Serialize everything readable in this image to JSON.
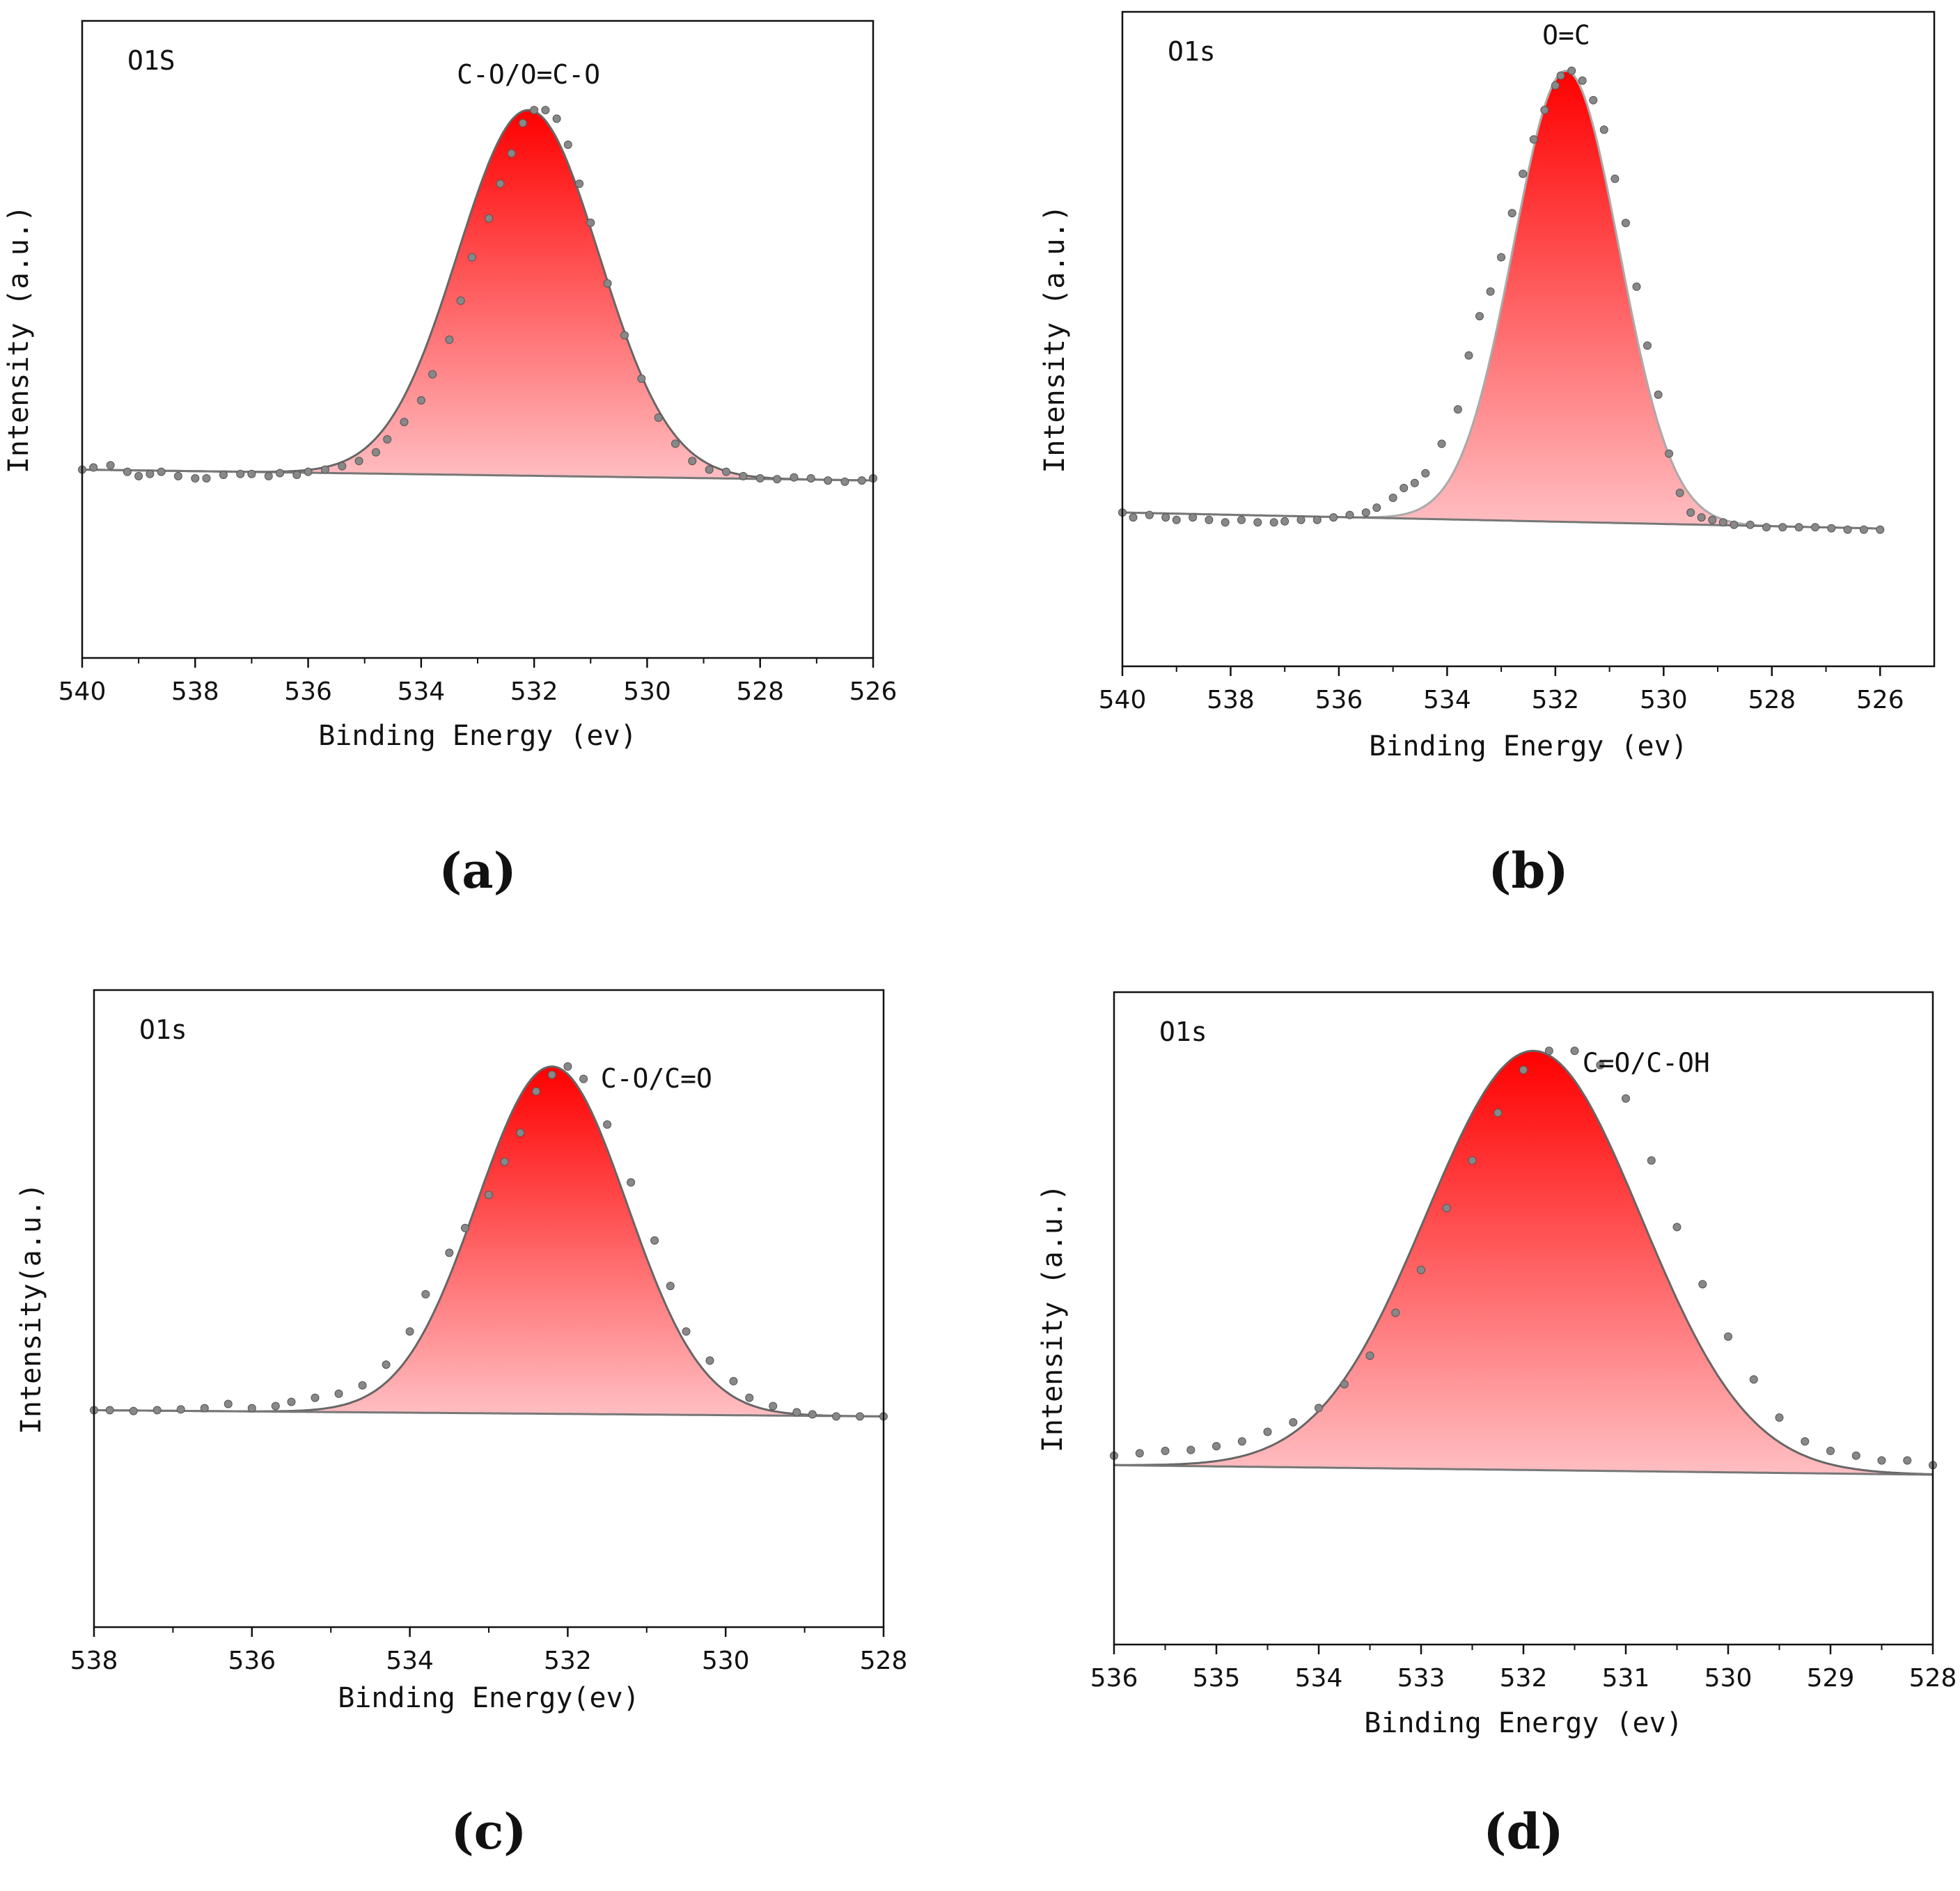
{
  "chart_data": [
    {
      "type": "area",
      "panel_label": "(a)",
      "spectrum_label": "O1S",
      "peak_annotation": "C-O/O=C-O",
      "xlabel": "Binding Energy (ev)",
      "ylabel": "Intensity (a.u.)",
      "xlim": [
        540,
        526
      ],
      "xticks": [
        540,
        538,
        536,
        534,
        532,
        530,
        528,
        526
      ],
      "x_reversed": true,
      "ylim": [
        0,
        1
      ],
      "peak": {
        "center": 532.1,
        "height": 1.0,
        "sigma": 1.25
      },
      "background": {
        "start": 0.17,
        "end": 0.145
      },
      "fill_gradient": [
        "#ff0000",
        "#ffbfc3"
      ],
      "fit_color": "#666666",
      "marker_color": "#888888",
      "points": {
        "x": [
          540,
          539.8,
          539.5,
          539.2,
          539.0,
          538.8,
          538.6,
          538.3,
          538.0,
          537.8,
          537.5,
          537.2,
          537.0,
          536.7,
          536.5,
          536.2,
          536.0,
          535.7,
          535.4,
          535.1,
          534.8,
          534.6,
          534.3,
          534.0,
          533.8,
          533.5,
          533.3,
          533.1,
          532.8,
          532.6,
          532.4,
          532.2,
          532.0,
          531.8,
          531.6,
          531.4,
          531.2,
          531.0,
          530.7,
          530.4,
          530.1,
          529.8,
          529.5,
          529.2,
          528.9,
          528.6,
          528.3,
          528.0,
          527.7,
          527.4,
          527.1,
          526.8,
          526.5,
          526.2,
          526.0
        ],
        "y": [
          0.17,
          0.175,
          0.18,
          0.165,
          0.155,
          0.16,
          0.165,
          0.155,
          0.15,
          0.15,
          0.158,
          0.16,
          0.16,
          0.155,
          0.162,
          0.158,
          0.165,
          0.17,
          0.178,
          0.19,
          0.21,
          0.24,
          0.28,
          0.33,
          0.39,
          0.47,
          0.56,
          0.66,
          0.75,
          0.83,
          0.9,
          0.97,
          1.0,
          1.0,
          0.98,
          0.92,
          0.83,
          0.74,
          0.6,
          0.48,
          0.38,
          0.29,
          0.23,
          0.19,
          0.17,
          0.165,
          0.155,
          0.15,
          0.148,
          0.152,
          0.15,
          0.145,
          0.142,
          0.145,
          0.15
        ]
      }
    },
    {
      "type": "area",
      "panel_label": "(b)",
      "spectrum_label": "O1s",
      "peak_annotation": "O=C",
      "xlabel": "Binding Energy (ev)",
      "ylabel": "Intensity (a.u.)",
      "xlim": [
        540,
        525
      ],
      "xticks": [
        540,
        538,
        536,
        534,
        532,
        530,
        528,
        526
      ],
      "x_reversed": true,
      "ylim": [
        0,
        1
      ],
      "peak": {
        "center": 531.8,
        "height": 1.0,
        "sigma": 0.98
      },
      "background": {
        "start": 0.1,
        "end": 0.065
      },
      "fill_gradient": [
        "#ff0000",
        "#ffbfc3"
      ],
      "fit_color": "#aaaaaa",
      "marker_color": "#888888",
      "points": {
        "x": [
          540,
          539.8,
          539.5,
          539.2,
          539.0,
          538.7,
          538.4,
          538.1,
          537.8,
          537.5,
          537.2,
          537.0,
          536.7,
          536.4,
          536.1,
          535.8,
          535.5,
          535.3,
          535.0,
          534.8,
          534.6,
          534.4,
          534.1,
          533.8,
          533.6,
          533.4,
          533.2,
          533.0,
          532.8,
          532.6,
          532.4,
          532.2,
          532.0,
          531.9,
          531.7,
          531.5,
          531.3,
          531.1,
          530.9,
          530.7,
          530.5,
          530.3,
          530.1,
          529.9,
          529.7,
          529.5,
          529.3,
          529.1,
          528.9,
          528.7,
          528.4,
          528.1,
          527.8,
          527.5,
          527.2,
          526.9,
          526.6,
          526.3,
          526.0
        ],
        "y": [
          0.1,
          0.09,
          0.095,
          0.09,
          0.085,
          0.09,
          0.085,
          0.08,
          0.085,
          0.08,
          0.08,
          0.082,
          0.085,
          0.085,
          0.09,
          0.095,
          0.1,
          0.11,
          0.13,
          0.15,
          0.16,
          0.18,
          0.24,
          0.31,
          0.42,
          0.5,
          0.55,
          0.62,
          0.71,
          0.79,
          0.86,
          0.92,
          0.97,
          0.99,
          1.0,
          0.98,
          0.94,
          0.88,
          0.78,
          0.69,
          0.56,
          0.44,
          0.34,
          0.22,
          0.14,
          0.1,
          0.09,
          0.085,
          0.08,
          0.075,
          0.075,
          0.07,
          0.07,
          0.07,
          0.07,
          0.068,
          0.065,
          0.065,
          0.065
        ]
      }
    },
    {
      "type": "area",
      "panel_label": "(c)",
      "spectrum_label": "O1s",
      "peak_annotation": "C-O/C=O",
      "xlabel": "Binding Energy(ev)",
      "ylabel": "Intensity(a.u.)",
      "xlim": [
        538,
        528
      ],
      "xticks": [
        538,
        536,
        534,
        532,
        530,
        528
      ],
      "x_reversed": true,
      "ylim": [
        0,
        1
      ],
      "peak": {
        "center": 532.2,
        "height": 1.0,
        "sigma": 0.95
      },
      "background": {
        "start": 0.17,
        "end": 0.155
      },
      "fill_gradient": [
        "#ff0000",
        "#ffbfc3"
      ],
      "fit_color": "#666666",
      "marker_color": "#888888",
      "points": {
        "x": [
          538,
          537.8,
          537.5,
          537.2,
          536.9,
          536.6,
          536.3,
          536.0,
          535.7,
          535.5,
          535.2,
          534.9,
          534.6,
          534.3,
          534.0,
          533.8,
          533.5,
          533.3,
          533.0,
          532.8,
          532.6,
          532.4,
          532.2,
          532.0,
          531.8,
          531.5,
          531.2,
          530.9,
          530.7,
          530.5,
          530.2,
          529.9,
          529.7,
          529.4,
          529.1,
          528.9,
          528.6,
          528.3,
          528.0
        ],
        "y": [
          0.17,
          0.17,
          0.168,
          0.17,
          0.172,
          0.175,
          0.185,
          0.175,
          0.18,
          0.19,
          0.2,
          0.21,
          0.23,
          0.28,
          0.36,
          0.45,
          0.55,
          0.61,
          0.69,
          0.77,
          0.84,
          0.94,
          0.98,
          1.0,
          0.97,
          0.86,
          0.72,
          0.58,
          0.47,
          0.36,
          0.29,
          0.24,
          0.2,
          0.18,
          0.165,
          0.16,
          0.155,
          0.155,
          0.155
        ]
      }
    },
    {
      "type": "area",
      "panel_label": "(d)",
      "spectrum_label": "O1s",
      "peak_annotation": "C=O/C-OH",
      "xlabel": "Binding Energy (ev)",
      "ylabel": "Intensity (a.u.)",
      "xlim": [
        536,
        528
      ],
      "xticks": [
        536,
        535,
        534,
        533,
        532,
        531,
        530,
        529,
        528
      ],
      "x_reversed": true,
      "ylim": [
        0,
        1
      ],
      "peak": {
        "center": 531.9,
        "height": 1.0,
        "sigma": 1.05
      },
      "background": {
        "start": 0.13,
        "end": 0.11
      },
      "fill_gradient": [
        "#ff0000",
        "#ffbfc3"
      ],
      "fit_color": "#666666",
      "marker_color": "#888888",
      "points": {
        "x": [
          536,
          535.75,
          535.5,
          535.25,
          535,
          534.75,
          534.5,
          534.25,
          534,
          533.75,
          533.5,
          533.25,
          533,
          532.75,
          532.5,
          532.25,
          532,
          531.75,
          531.5,
          531.25,
          531,
          530.75,
          530.5,
          530.25,
          530,
          529.75,
          529.5,
          529.25,
          529,
          528.75,
          528.5,
          528.25,
          528
        ],
        "y": [
          0.15,
          0.155,
          0.16,
          0.162,
          0.17,
          0.18,
          0.2,
          0.22,
          0.25,
          0.3,
          0.36,
          0.45,
          0.54,
          0.67,
          0.77,
          0.87,
          0.96,
          1.0,
          1.0,
          0.97,
          0.9,
          0.77,
          0.63,
          0.51,
          0.4,
          0.31,
          0.23,
          0.18,
          0.16,
          0.15,
          0.14,
          0.14,
          0.13
        ]
      }
    }
  ]
}
